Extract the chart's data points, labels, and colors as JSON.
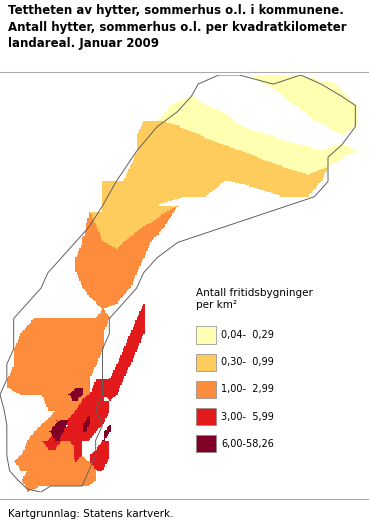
{
  "title_line1": "Tettheten av hytter, sommerhus o.l. i kommunene.",
  "title_line2": "Antall hytter, sommerhus o.l. per kvadratkilometer",
  "title_line3": "landareal. Januar 2009",
  "footer": "Kartgrunnlag: Statens kartverk.",
  "legend_title_line1": "Antall fritidsbygninger",
  "legend_title_line2": "per km²",
  "legend_labels": [
    "0,04-  0,29",
    "0,30-  0,99",
    "1,00-  2,99",
    "3,00-  5,99",
    "6,00-58,26"
  ],
  "legend_colors": [
    "#FFFFB2",
    "#FECC5C",
    "#FD8D3C",
    "#E31A1C",
    "#800026"
  ],
  "background_color": "#FFFFFF",
  "title_fontsize": 8.5,
  "footer_fontsize": 7.5,
  "legend_fontsize": 7.5,
  "border_color": "#808080",
  "border_lw": 0.3,
  "figsize": [
    3.69,
    5.28
  ],
  "dpi": 100,
  "map_extent": [
    4.5,
    31.5,
    57.8,
    71.5
  ]
}
